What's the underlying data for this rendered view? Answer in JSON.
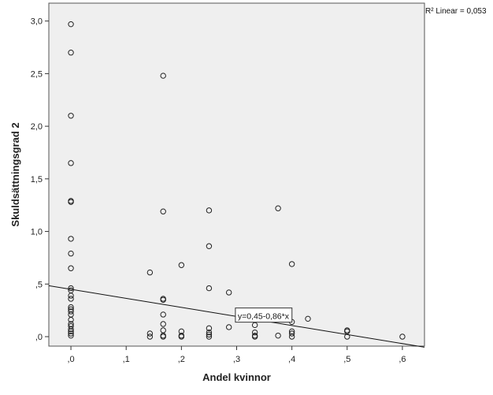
{
  "chart_data": {
    "type": "scatter",
    "xlabel": "Andel kvinnor",
    "ylabel": "Skuldsättningsgrad 2",
    "xlim": [
      -0.04,
      0.64
    ],
    "ylim": [
      -0.09,
      3.17
    ],
    "x_ticks": [
      0,
      0.1,
      0.2,
      0.3,
      0.4,
      0.5,
      0.6
    ],
    "x_tick_labels": [
      ",0",
      ",1",
      ",2",
      ",3",
      ",4",
      ",5",
      ",6"
    ],
    "y_ticks": [
      0,
      0.5,
      1.0,
      1.5,
      2.0,
      2.5,
      3.0
    ],
    "y_tick_labels": [
      ",0",
      ",5",
      "1,0",
      "1,5",
      "2,0",
      "2,5",
      "3,0"
    ],
    "grid": false,
    "colors": {
      "plot_background": "#efefef",
      "marker_stroke": "#222222",
      "line": "#111111"
    },
    "r2_label": "R² Linear = 0,053",
    "fit_line": {
      "intercept": 0.45,
      "slope": -0.86,
      "label": "y=0,45-0,86*x",
      "label_at": [
        0.302,
        0.19
      ]
    },
    "points": [
      [
        0,
        2.97
      ],
      [
        0,
        2.7
      ],
      [
        0,
        2.1
      ],
      [
        0,
        1.65
      ],
      [
        0,
        1.29
      ],
      [
        0,
        1.28
      ],
      [
        0,
        0.93
      ],
      [
        0,
        0.79
      ],
      [
        0,
        0.65
      ],
      [
        0,
        0.46
      ],
      [
        0,
        0.44
      ],
      [
        0,
        0.39
      ],
      [
        0,
        0.36
      ],
      [
        0,
        0.28
      ],
      [
        0,
        0.26
      ],
      [
        0,
        0.24
      ],
      [
        0,
        0.21
      ],
      [
        0,
        0.16
      ],
      [
        0,
        0.12
      ],
      [
        0,
        0.1
      ],
      [
        0,
        0.07
      ],
      [
        0,
        0.05
      ],
      [
        0,
        0.03
      ],
      [
        0,
        0.01
      ],
      [
        0.143,
        0.61
      ],
      [
        0.143,
        0.03
      ],
      [
        0.143,
        0.0
      ],
      [
        0.167,
        2.48
      ],
      [
        0.167,
        1.19
      ],
      [
        0.167,
        0.36
      ],
      [
        0.167,
        0.35
      ],
      [
        0.167,
        0.21
      ],
      [
        0.167,
        0.12
      ],
      [
        0.167,
        0.06
      ],
      [
        0.167,
        0.01
      ],
      [
        0.167,
        0.0
      ],
      [
        0.2,
        0.68
      ],
      [
        0.2,
        0.05
      ],
      [
        0.2,
        0.01
      ],
      [
        0.2,
        0.0
      ],
      [
        0.25,
        1.2
      ],
      [
        0.25,
        0.86
      ],
      [
        0.25,
        0.46
      ],
      [
        0.25,
        0.08
      ],
      [
        0.25,
        0.04
      ],
      [
        0.25,
        0.02
      ],
      [
        0.25,
        0.0
      ],
      [
        0.286,
        0.42
      ],
      [
        0.286,
        0.09
      ],
      [
        0.333,
        0.11
      ],
      [
        0.333,
        0.04
      ],
      [
        0.333,
        0.01
      ],
      [
        0.333,
        0.0
      ],
      [
        0.375,
        1.22
      ],
      [
        0.375,
        0.01
      ],
      [
        0.4,
        0.69
      ],
      [
        0.4,
        0.14
      ],
      [
        0.4,
        0.05
      ],
      [
        0.4,
        0.03
      ],
      [
        0.4,
        0.0
      ],
      [
        0.429,
        0.17
      ],
      [
        0.5,
        0.06
      ],
      [
        0.5,
        0.05
      ],
      [
        0.5,
        0.0
      ],
      [
        0.6,
        0.0
      ]
    ]
  }
}
